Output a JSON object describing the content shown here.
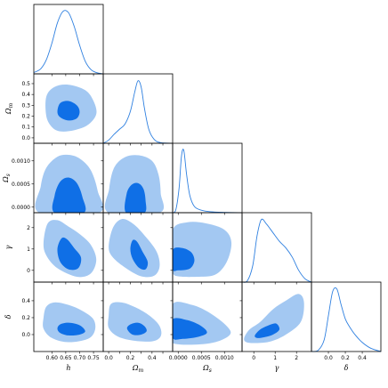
{
  "chart_data": {
    "type": "corner",
    "parameters": [
      {
        "key": "h",
        "label": "h",
        "range": [
          0.535,
          0.785
        ],
        "ticks": [
          0.6,
          0.65,
          0.7,
          0.75
        ],
        "tick_labels": [
          "0.60",
          "0.65",
          "0.70",
          "0.75"
        ]
      },
      {
        "key": "om",
        "label": "Ω",
        "label_sub": "m",
        "range": [
          -0.05,
          0.59
        ],
        "ticks": [
          0.0,
          0.1,
          0.2,
          0.3,
          0.4,
          0.5
        ],
        "tick_labels": [
          "0.0",
          "0.1",
          "0.2",
          "0.3",
          "0.4",
          "0.5"
        ],
        "x_tick_labels": [
          "0.0",
          "",
          "0.2",
          "",
          "0.4",
          ""
        ]
      },
      {
        "key": "os",
        "label": "Ω",
        "label_sub": "s",
        "range": [
          -0.00012,
          0.00138
        ],
        "ticks": [
          0.0,
          0.0005,
          0.001
        ],
        "tick_labels": [
          "0.0000",
          "0.0005",
          "0.0010"
        ],
        "y_ticks": [
          0.0,
          0.0005,
          0.001
        ],
        "y_tick_labels": [
          "0.0000",
          "0.0005",
          "0.0010"
        ]
      },
      {
        "key": "gamma",
        "label": "γ",
        "range": [
          -0.55,
          2.7
        ],
        "ticks": [
          0,
          1,
          2
        ],
        "tick_labels": [
          "0",
          "1",
          "2"
        ]
      },
      {
        "key": "delta",
        "label": "δ",
        "range": [
          -0.2,
          0.62
        ],
        "ticks": [
          0.0,
          0.2,
          0.4
        ],
        "tick_labels": [
          "0.0",
          "0.2",
          "0.4"
        ]
      }
    ],
    "y_axis_extra_ticks": {
      "om": [
        {
          "v": 0.0,
          "t": "0.0"
        },
        {
          "v": 0.1,
          "t": "0.1"
        },
        {
          "v": 0.2,
          "t": "0.2"
        },
        {
          "v": 0.3,
          "t": "0.3"
        },
        {
          "v": 0.4,
          "t": "0.4"
        },
        {
          "v": 0.5,
          "t": "0.5"
        }
      ],
      "os": [
        {
          "v": 0.0,
          "t": "0.0000"
        },
        {
          "v": 0.0005,
          "t": "0.0005"
        },
        {
          "v": 0.001,
          "t": "0.0010"
        }
      ],
      "gamma": [
        {
          "v": 0,
          "t": "0"
        },
        {
          "v": 1,
          "t": "1"
        },
        {
          "v": 2,
          "t": "2"
        }
      ],
      "delta": [
        {
          "v": 0.0,
          "t": "0.0"
        },
        {
          "v": 0.2,
          "t": "0.2"
        },
        {
          "v": 0.4,
          "t": "0.4"
        }
      ]
    },
    "marginals": [
      {
        "param": "h",
        "x": [
          0.535,
          0.56,
          0.58,
          0.6,
          0.62,
          0.64,
          0.66,
          0.68,
          0.7,
          0.72,
          0.74,
          0.76,
          0.785
        ],
        "y": [
          0.02,
          0.08,
          0.22,
          0.48,
          0.8,
          0.98,
          0.96,
          0.75,
          0.45,
          0.2,
          0.07,
          0.02,
          0.0
        ]
      },
      {
        "param": "om",
        "x": [
          -0.05,
          0.0,
          0.05,
          0.1,
          0.15,
          0.2,
          0.24,
          0.27,
          0.3,
          0.33,
          0.37,
          0.42,
          0.48,
          0.59
        ],
        "y": [
          0.0,
          0.05,
          0.14,
          0.22,
          0.3,
          0.5,
          0.8,
          0.98,
          0.88,
          0.55,
          0.22,
          0.06,
          0.01,
          0.0
        ]
      },
      {
        "param": "os",
        "x": [
          -0.00012,
          -5e-05,
          2e-05,
          7e-05,
          0.00012,
          0.00018,
          0.00025,
          0.00035,
          0.0005,
          0.0007,
          0.001,
          0.00138
        ],
        "y": [
          0.0,
          0.05,
          0.4,
          0.9,
          1.0,
          0.62,
          0.28,
          0.1,
          0.04,
          0.015,
          0.005,
          0.0
        ]
      },
      {
        "param": "gamma",
        "x": [
          -0.55,
          -0.3,
          -0.05,
          0.15,
          0.35,
          0.6,
          0.9,
          1.2,
          1.5,
          1.8,
          2.1,
          2.4,
          2.7
        ],
        "y": [
          0.0,
          0.02,
          0.25,
          0.7,
          0.95,
          0.88,
          0.75,
          0.62,
          0.52,
          0.38,
          0.18,
          0.05,
          0.0
        ]
      },
      {
        "param": "delta",
        "x": [
          -0.2,
          -0.12,
          -0.05,
          0.0,
          0.05,
          0.1,
          0.15,
          0.2,
          0.25,
          0.32,
          0.4,
          0.5,
          0.62
        ],
        "y": [
          0.0,
          0.02,
          0.18,
          0.55,
          0.92,
          0.96,
          0.72,
          0.5,
          0.38,
          0.25,
          0.14,
          0.05,
          0.0
        ]
      }
    ],
    "contours": [
      {
        "x": "h",
        "y": "om",
        "outer": [
          [
            0.58,
            0.2
          ],
          [
            0.6,
            0.1
          ],
          [
            0.63,
            0.06
          ],
          [
            0.68,
            0.07
          ],
          [
            0.73,
            0.12
          ],
          [
            0.76,
            0.22
          ],
          [
            0.75,
            0.34
          ],
          [
            0.72,
            0.44
          ],
          [
            0.66,
            0.49
          ],
          [
            0.61,
            0.47
          ],
          [
            0.58,
            0.38
          ]
        ],
        "inner": [
          [
            0.62,
            0.24
          ],
          [
            0.63,
            0.19
          ],
          [
            0.66,
            0.16
          ],
          [
            0.69,
            0.18
          ],
          [
            0.7,
            0.24
          ],
          [
            0.69,
            0.3
          ],
          [
            0.66,
            0.34
          ],
          [
            0.63,
            0.32
          ]
        ]
      },
      {
        "x": "h",
        "y": "os",
        "outer": [
          [
            0.555,
            -0.00012
          ],
          [
            0.56,
            0.00045
          ],
          [
            0.58,
            0.00085
          ],
          [
            0.62,
            0.00109
          ],
          [
            0.66,
            0.00113
          ],
          [
            0.7,
            0.00105
          ],
          [
            0.74,
            0.0008
          ],
          [
            0.765,
            0.00035
          ],
          [
            0.77,
            -0.00012
          ]
        ],
        "inner": [
          [
            0.61,
            -0.00012
          ],
          [
            0.61,
            0.00025
          ],
          [
            0.63,
            0.00055
          ],
          [
            0.66,
            0.00064
          ],
          [
            0.69,
            0.00052
          ],
          [
            0.71,
            0.00022
          ],
          [
            0.715,
            -0.00012
          ]
        ]
      },
      {
        "x": "h",
        "y": "gamma",
        "outer": [
          [
            0.57,
            1.3
          ],
          [
            0.585,
            2.2
          ],
          [
            0.62,
            2.35
          ],
          [
            0.66,
            2.05
          ],
          [
            0.7,
            1.7
          ],
          [
            0.74,
            1.2
          ],
          [
            0.76,
            0.5
          ],
          [
            0.74,
            -0.15
          ],
          [
            0.69,
            -0.3
          ],
          [
            0.62,
            0.1
          ],
          [
            0.58,
            0.7
          ]
        ],
        "inner": [
          [
            0.62,
            1.0
          ],
          [
            0.635,
            1.5
          ],
          [
            0.655,
            1.45
          ],
          [
            0.68,
            1.05
          ],
          [
            0.705,
            0.6
          ],
          [
            0.695,
            0.1
          ],
          [
            0.66,
            0.05
          ],
          [
            0.63,
            0.4
          ]
        ]
      },
      {
        "x": "h",
        "y": "delta",
        "outer": [
          [
            0.57,
            0.2
          ],
          [
            0.58,
            0.33
          ],
          [
            0.61,
            0.38
          ],
          [
            0.66,
            0.35
          ],
          [
            0.71,
            0.28
          ],
          [
            0.75,
            0.18
          ],
          [
            0.755,
            0.05
          ],
          [
            0.73,
            -0.05
          ],
          [
            0.66,
            -0.09
          ],
          [
            0.6,
            -0.04
          ],
          [
            0.57,
            0.07
          ]
        ],
        "inner": [
          [
            0.62,
            0.07
          ],
          [
            0.63,
            0.12
          ],
          [
            0.66,
            0.14
          ],
          [
            0.7,
            0.11
          ],
          [
            0.72,
            0.04
          ],
          [
            0.7,
            0.0
          ],
          [
            0.66,
            -0.01
          ],
          [
            0.63,
            0.02
          ]
        ]
      },
      {
        "x": "om",
        "y": "os",
        "outer": [
          [
            0.0,
            -0.00012
          ],
          [
            0.005,
            0.0004
          ],
          [
            0.05,
            0.00085
          ],
          [
            0.15,
            0.00108
          ],
          [
            0.28,
            0.00112
          ],
          [
            0.4,
            0.001
          ],
          [
            0.46,
            0.0007
          ],
          [
            0.48,
            0.0003
          ],
          [
            0.47,
            -0.00012
          ]
        ],
        "inner": [
          [
            0.16,
            -0.00012
          ],
          [
            0.165,
            0.00028
          ],
          [
            0.21,
            0.00048
          ],
          [
            0.27,
            0.00052
          ],
          [
            0.32,
            0.0004
          ],
          [
            0.34,
            0.00015
          ],
          [
            0.33,
            -0.00012
          ]
        ]
      },
      {
        "x": "om",
        "y": "gamma",
        "outer": [
          [
            0.0,
            1.1
          ],
          [
            0.04,
            2.0
          ],
          [
            0.12,
            2.4
          ],
          [
            0.22,
            2.2
          ],
          [
            0.32,
            1.7
          ],
          [
            0.44,
            0.9
          ],
          [
            0.47,
            0.2
          ],
          [
            0.42,
            -0.25
          ],
          [
            0.3,
            -0.28
          ],
          [
            0.16,
            0.1
          ],
          [
            0.04,
            0.6
          ]
        ],
        "inner": [
          [
            0.2,
            1.0
          ],
          [
            0.22,
            1.4
          ],
          [
            0.26,
            1.35
          ],
          [
            0.31,
            0.9
          ],
          [
            0.36,
            0.4
          ],
          [
            0.34,
            0.05
          ],
          [
            0.28,
            0.12
          ],
          [
            0.22,
            0.55
          ]
        ]
      },
      {
        "x": "om",
        "y": "delta",
        "outer": [
          [
            0.0,
            0.22
          ],
          [
            0.02,
            0.36
          ],
          [
            0.12,
            0.38
          ],
          [
            0.25,
            0.32
          ],
          [
            0.38,
            0.22
          ],
          [
            0.47,
            0.1
          ],
          [
            0.48,
            -0.02
          ],
          [
            0.4,
            -0.08
          ],
          [
            0.22,
            -0.07
          ],
          [
            0.08,
            -0.02
          ],
          [
            0.0,
            0.08
          ]
        ],
        "inner": [
          [
            0.17,
            0.07
          ],
          [
            0.2,
            0.12
          ],
          [
            0.27,
            0.14
          ],
          [
            0.33,
            0.1
          ],
          [
            0.35,
            0.04
          ],
          [
            0.3,
            0.0
          ],
          [
            0.22,
            0.0
          ]
        ]
      },
      {
        "x": "os",
        "y": "gamma",
        "outer": [
          [
            -0.00012,
            0.4
          ],
          [
            -0.00012,
            1.9
          ],
          [
            0.0002,
            2.25
          ],
          [
            0.0006,
            2.2
          ],
          [
            0.001,
            1.9
          ],
          [
            0.00115,
            1.3
          ],
          [
            0.00105,
            0.4
          ],
          [
            0.0008,
            -0.2
          ],
          [
            0.0004,
            -0.3
          ],
          [
            0.0,
            -0.28
          ],
          [
            -0.00012,
            -0.1
          ]
        ],
        "inner": [
          [
            -0.00012,
            0.05
          ],
          [
            -0.00012,
            0.95
          ],
          [
            8e-05,
            1.05
          ],
          [
            0.00028,
            0.85
          ],
          [
            0.00035,
            0.45
          ],
          [
            0.00025,
            0.08
          ],
          [
            0.0,
            0.0
          ]
        ]
      },
      {
        "x": "os",
        "y": "delta",
        "outer": [
          [
            -0.00012,
            0.0
          ],
          [
            -0.00012,
            0.36
          ],
          [
            0.0003,
            0.35
          ],
          [
            0.0007,
            0.25
          ],
          [
            0.00105,
            0.1
          ],
          [
            0.00112,
            0.0
          ],
          [
            0.0008,
            -0.09
          ],
          [
            0.0003,
            -0.12
          ],
          [
            -0.00012,
            -0.1
          ]
        ],
        "inner": [
          [
            -0.00012,
            -0.04
          ],
          [
            -0.00012,
            0.18
          ],
          [
            0.0002,
            0.17
          ],
          [
            0.0005,
            0.1
          ],
          [
            0.00062,
            0.02
          ],
          [
            0.0004,
            -0.03
          ],
          [
            0.0001,
            -0.05
          ]
        ]
      },
      {
        "x": "gamma",
        "y": "delta",
        "outer": [
          [
            -0.45,
            -0.04
          ],
          [
            -0.2,
            0.06
          ],
          [
            0.3,
            0.15
          ],
          [
            0.9,
            0.3
          ],
          [
            1.5,
            0.4
          ],
          [
            2.1,
            0.48
          ],
          [
            2.35,
            0.38
          ],
          [
            2.2,
            0.15
          ],
          [
            1.5,
            0.0
          ],
          [
            0.8,
            -0.08
          ],
          [
            0.1,
            -0.1
          ],
          [
            -0.35,
            -0.09
          ]
        ],
        "inner": [
          [
            0.05,
            -0.01
          ],
          [
            0.3,
            0.06
          ],
          [
            0.7,
            0.11
          ],
          [
            1.05,
            0.13
          ],
          [
            1.2,
            0.06
          ],
          [
            0.9,
            0.0
          ],
          [
            0.5,
            -0.03
          ],
          [
            0.15,
            -0.04
          ]
        ]
      }
    ]
  }
}
